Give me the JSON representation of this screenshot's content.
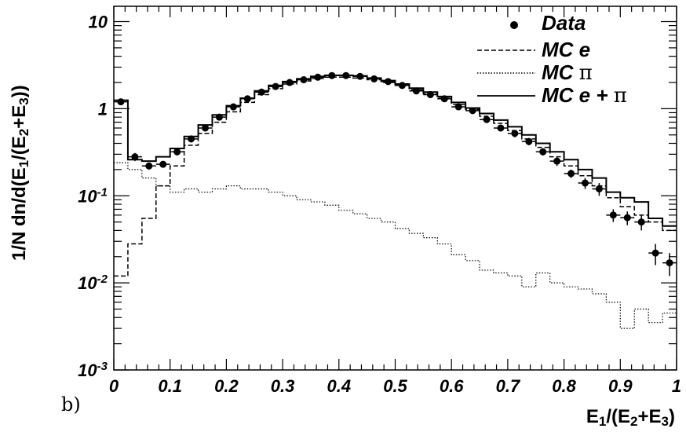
{
  "chart_data": {
    "type": "line",
    "panel_label": "b)",
    "xlabel": {
      "main": "E",
      "sub1": "1",
      "mid": "/(E",
      "sub2": "2",
      "plus": "+E",
      "sub3": "3",
      "close": ")"
    },
    "ylabel": {
      "main": "1/N dn/d(E",
      "sub1": "1",
      "mid": "/(E",
      "sub2": "2",
      "plus": "+E",
      "sub3": "3",
      "close": "))"
    },
    "x_scale": "linear",
    "y_scale": "log",
    "xlim": [
      0,
      1
    ],
    "ylim": [
      0.001,
      15
    ],
    "x_ticks": [
      {
        "value": 0,
        "label": "0"
      },
      {
        "value": 0.1,
        "label": "0.1"
      },
      {
        "value": 0.2,
        "label": "0.2"
      },
      {
        "value": 0.3,
        "label": "0.3"
      },
      {
        "value": 0.4,
        "label": "0.4"
      },
      {
        "value": 0.5,
        "label": "0.5"
      },
      {
        "value": 0.6,
        "label": "0.6"
      },
      {
        "value": 0.7,
        "label": "0.7"
      },
      {
        "value": 0.8,
        "label": "0.8"
      },
      {
        "value": 0.9,
        "label": "0.9"
      },
      {
        "value": 1,
        "label": "1"
      }
    ],
    "y_ticks": [
      {
        "value": 10,
        "label": "10",
        "exp": ""
      },
      {
        "value": 1,
        "label": "1",
        "exp": ""
      },
      {
        "value": 0.1,
        "label": "10",
        "exp": "-1"
      },
      {
        "value": 0.01,
        "label": "10",
        "exp": "-2"
      },
      {
        "value": 0.001,
        "label": "10",
        "exp": "-3"
      }
    ],
    "bin_width": 0.025,
    "legend": {
      "position": "top-right",
      "entries": [
        {
          "text": "Data",
          "greek": "",
          "style": "marker"
        },
        {
          "text": "MC e",
          "greek": "",
          "style": "dashed"
        },
        {
          "text": "MC ",
          "greek": "π",
          "style": "dotted"
        },
        {
          "text": "MC e + ",
          "greek": "π",
          "style": "solid"
        }
      ]
    },
    "series": [
      {
        "name": "Data",
        "style": "marker",
        "x": [
          0.0125,
          0.0375,
          0.0625,
          0.0875,
          0.1125,
          0.1375,
          0.1625,
          0.1875,
          0.2125,
          0.2375,
          0.2625,
          0.2875,
          0.3125,
          0.3375,
          0.3625,
          0.3875,
          0.4125,
          0.4375,
          0.4625,
          0.4875,
          0.5125,
          0.5375,
          0.5625,
          0.5875,
          0.6125,
          0.6375,
          0.6625,
          0.6875,
          0.7125,
          0.7375,
          0.7625,
          0.7875,
          0.8125,
          0.8375,
          0.8625,
          0.8875,
          0.9125,
          0.9375,
          0.9625,
          0.9875
        ],
        "y": [
          1.2,
          0.28,
          0.22,
          0.23,
          0.32,
          0.45,
          0.6,
          0.8,
          1.05,
          1.3,
          1.55,
          1.8,
          2.0,
          2.15,
          2.3,
          2.4,
          2.4,
          2.35,
          2.2,
          2.05,
          1.85,
          1.6,
          1.45,
          1.3,
          1.05,
          0.95,
          0.75,
          0.6,
          0.52,
          0.42,
          0.32,
          0.25,
          0.18,
          0.14,
          0.12,
          0.06,
          0.056,
          0.05,
          0.022,
          0.017
        ],
        "y_err": [
          0.08,
          0.03,
          0.02,
          0.02,
          0.03,
          0.04,
          0.05,
          0.06,
          0.07,
          0.08,
          0.09,
          0.1,
          0.11,
          0.11,
          0.12,
          0.12,
          0.12,
          0.12,
          0.12,
          0.11,
          0.1,
          0.09,
          0.09,
          0.08,
          0.07,
          0.07,
          0.06,
          0.05,
          0.05,
          0.04,
          0.03,
          0.03,
          0.02,
          0.02,
          0.02,
          0.01,
          0.01,
          0.01,
          0.006,
          0.005
        ]
      },
      {
        "name": "MC e",
        "style": "dashed",
        "y": [
          0.012,
          0.028,
          0.055,
          0.13,
          0.22,
          0.38,
          0.52,
          0.7,
          0.92,
          1.18,
          1.45,
          1.7,
          1.92,
          2.08,
          2.22,
          2.3,
          2.3,
          2.25,
          2.15,
          2.0,
          1.85,
          1.65,
          1.48,
          1.32,
          1.12,
          0.98,
          0.82,
          0.68,
          0.56,
          0.45,
          0.36,
          0.28,
          0.22,
          0.17,
          0.13,
          0.095,
          0.075,
          0.06,
          0.05,
          0.04
        ]
      },
      {
        "name": "MC π",
        "style": "dotted",
        "y": [
          0.24,
          0.2,
          0.16,
          0.13,
          0.11,
          0.12,
          0.11,
          0.12,
          0.13,
          0.12,
          0.12,
          0.11,
          0.1,
          0.09,
          0.085,
          0.078,
          0.068,
          0.062,
          0.055,
          0.05,
          0.042,
          0.037,
          0.033,
          0.028,
          0.021,
          0.018,
          0.014,
          0.013,
          0.012,
          0.009,
          0.013,
          0.01,
          0.009,
          0.0085,
          0.0075,
          0.006,
          0.003,
          0.005,
          0.0035,
          0.0045
        ]
      },
      {
        "name": "MC e + π",
        "style": "solid",
        "y": [
          1.25,
          0.26,
          0.25,
          0.28,
          0.35,
          0.48,
          0.65,
          0.85,
          1.08,
          1.32,
          1.6,
          1.85,
          2.05,
          2.2,
          2.35,
          2.42,
          2.42,
          2.38,
          2.25,
          2.1,
          1.92,
          1.72,
          1.55,
          1.38,
          1.18,
          1.02,
          0.88,
          0.74,
          0.62,
          0.5,
          0.4,
          0.32,
          0.26,
          0.2,
          0.16,
          0.11,
          0.095,
          0.085,
          0.055,
          0.045
        ]
      }
    ]
  }
}
